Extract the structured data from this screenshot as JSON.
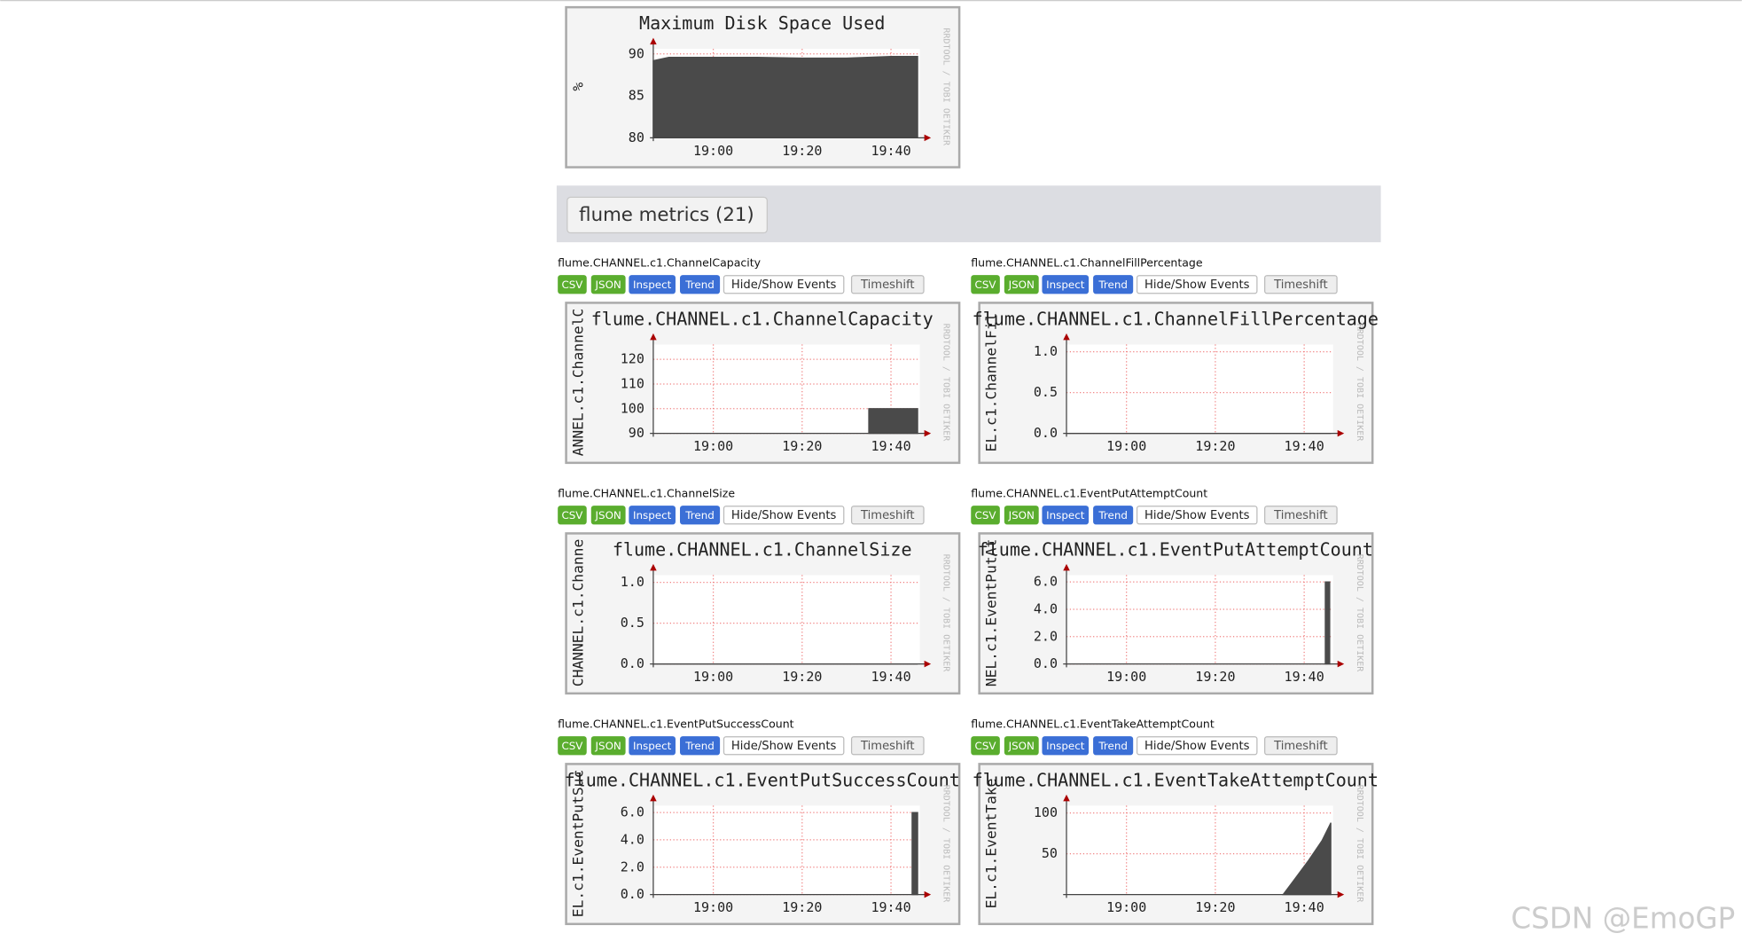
{
  "time_axis": {
    "xlim": [
      -13.5,
      46.5
    ],
    "xticks": [
      {
        "value": 0,
        "label": "19:00"
      },
      {
        "value": 20,
        "label": "19:20"
      },
      {
        "value": 40,
        "label": "19:40"
      }
    ]
  },
  "watermark": "RRDTOOL / TOBI OETIKER",
  "buttons": [
    "CSV",
    "JSON",
    "Inspect",
    "Trend",
    "Hide/Show Events",
    "Timeshift"
  ],
  "disk_graph": {
    "title": "Maximum Disk Space Used",
    "ylabel": "%",
    "ylim": [
      80,
      90.6
    ],
    "yticks": [
      80,
      85,
      90
    ],
    "x": [
      -13.5,
      -10,
      0,
      10,
      20,
      30,
      40,
      46
    ],
    "values": [
      89.2,
      89.6,
      89.6,
      89.6,
      89.5,
      89.5,
      89.7,
      89.7
    ]
  },
  "section": {
    "title": "flume metrics (21)"
  },
  "panels": [
    {
      "name": "flume.CHANNEL.c1.ChannelCapacity",
      "graph": {
        "title": "flume.CHANNEL.c1.ChannelCapacity",
        "ylabel": "ANNEL.c1.ChannelC",
        "ylim": [
          90,
          126
        ],
        "yticks": [
          90,
          100,
          110,
          120
        ],
        "x": [
          35,
          46
        ],
        "values": [
          100,
          100
        ]
      }
    },
    {
      "name": "flume.CHANNEL.c1.ChannelFillPercentage",
      "graph": {
        "title": "flume.CHANNEL.c1.ChannelFillPercentage",
        "ylabel": "EL.c1.ChannelFil",
        "ylim": [
          0,
          1.09
        ],
        "yticks": [
          {
            "value": 0,
            "label": "0.0"
          },
          {
            "value": 0.5,
            "label": "0.5"
          },
          {
            "value": 1,
            "label": "1.0"
          }
        ],
        "x": [
          -13.5,
          46
        ],
        "values": [
          0,
          0
        ]
      }
    },
    {
      "name": "flume.CHANNEL.c1.ChannelSize",
      "graph": {
        "title": "flume.CHANNEL.c1.ChannelSize",
        "ylabel": "CHANNEL.c1.Channe",
        "ylim": [
          0,
          1.09
        ],
        "yticks": [
          {
            "value": 0,
            "label": "0.0"
          },
          {
            "value": 0.5,
            "label": "0.5"
          },
          {
            "value": 1,
            "label": "1.0"
          }
        ],
        "x": [
          -13.5,
          46
        ],
        "values": [
          0,
          0
        ]
      }
    },
    {
      "name": "flume.CHANNEL.c1.EventPutAttemptCount",
      "graph": {
        "title": "flume.CHANNEL.c1.EventPutAttemptCount",
        "ylabel": "NEL.c1.EventPutAt",
        "ylim": [
          0,
          6.5
        ],
        "yticks": [
          {
            "value": 0,
            "label": "0.0"
          },
          {
            "value": 2,
            "label": "2.0"
          },
          {
            "value": 4,
            "label": "4.0"
          },
          {
            "value": 6,
            "label": "6.0"
          }
        ],
        "x": [
          44.75,
          45.75
        ],
        "values": [
          6,
          6
        ]
      }
    },
    {
      "name": "flume.CHANNEL.c1.EventPutSuccessCount",
      "graph": {
        "title": "flume.CHANNEL.c1.EventPutSuccessCount",
        "ylabel": "EL.c1.EventPutSuc",
        "ylim": [
          0,
          6.5
        ],
        "yticks": [
          {
            "value": 0,
            "label": "0.0"
          },
          {
            "value": 2,
            "label": "2.0"
          },
          {
            "value": 4,
            "label": "4.0"
          },
          {
            "value": 6,
            "label": "6.0"
          }
        ],
        "x": [
          44.75,
          46
        ],
        "values": [
          6,
          6
        ]
      }
    },
    {
      "name": "flume.CHANNEL.c1.EventTakeAttemptCount",
      "graph": {
        "title": "flume.CHANNEL.c1.EventTakeAttemptCount",
        "ylabel": "EL.c1.EventTake",
        "ylim": [
          0,
          109
        ],
        "yticks": [
          50,
          100
        ],
        "x": [
          35.25,
          38,
          41,
          44,
          46
        ],
        "values": [
          0,
          20,
          42,
          66,
          88
        ]
      }
    }
  ],
  "footer": "CSDN @EmoGP"
}
